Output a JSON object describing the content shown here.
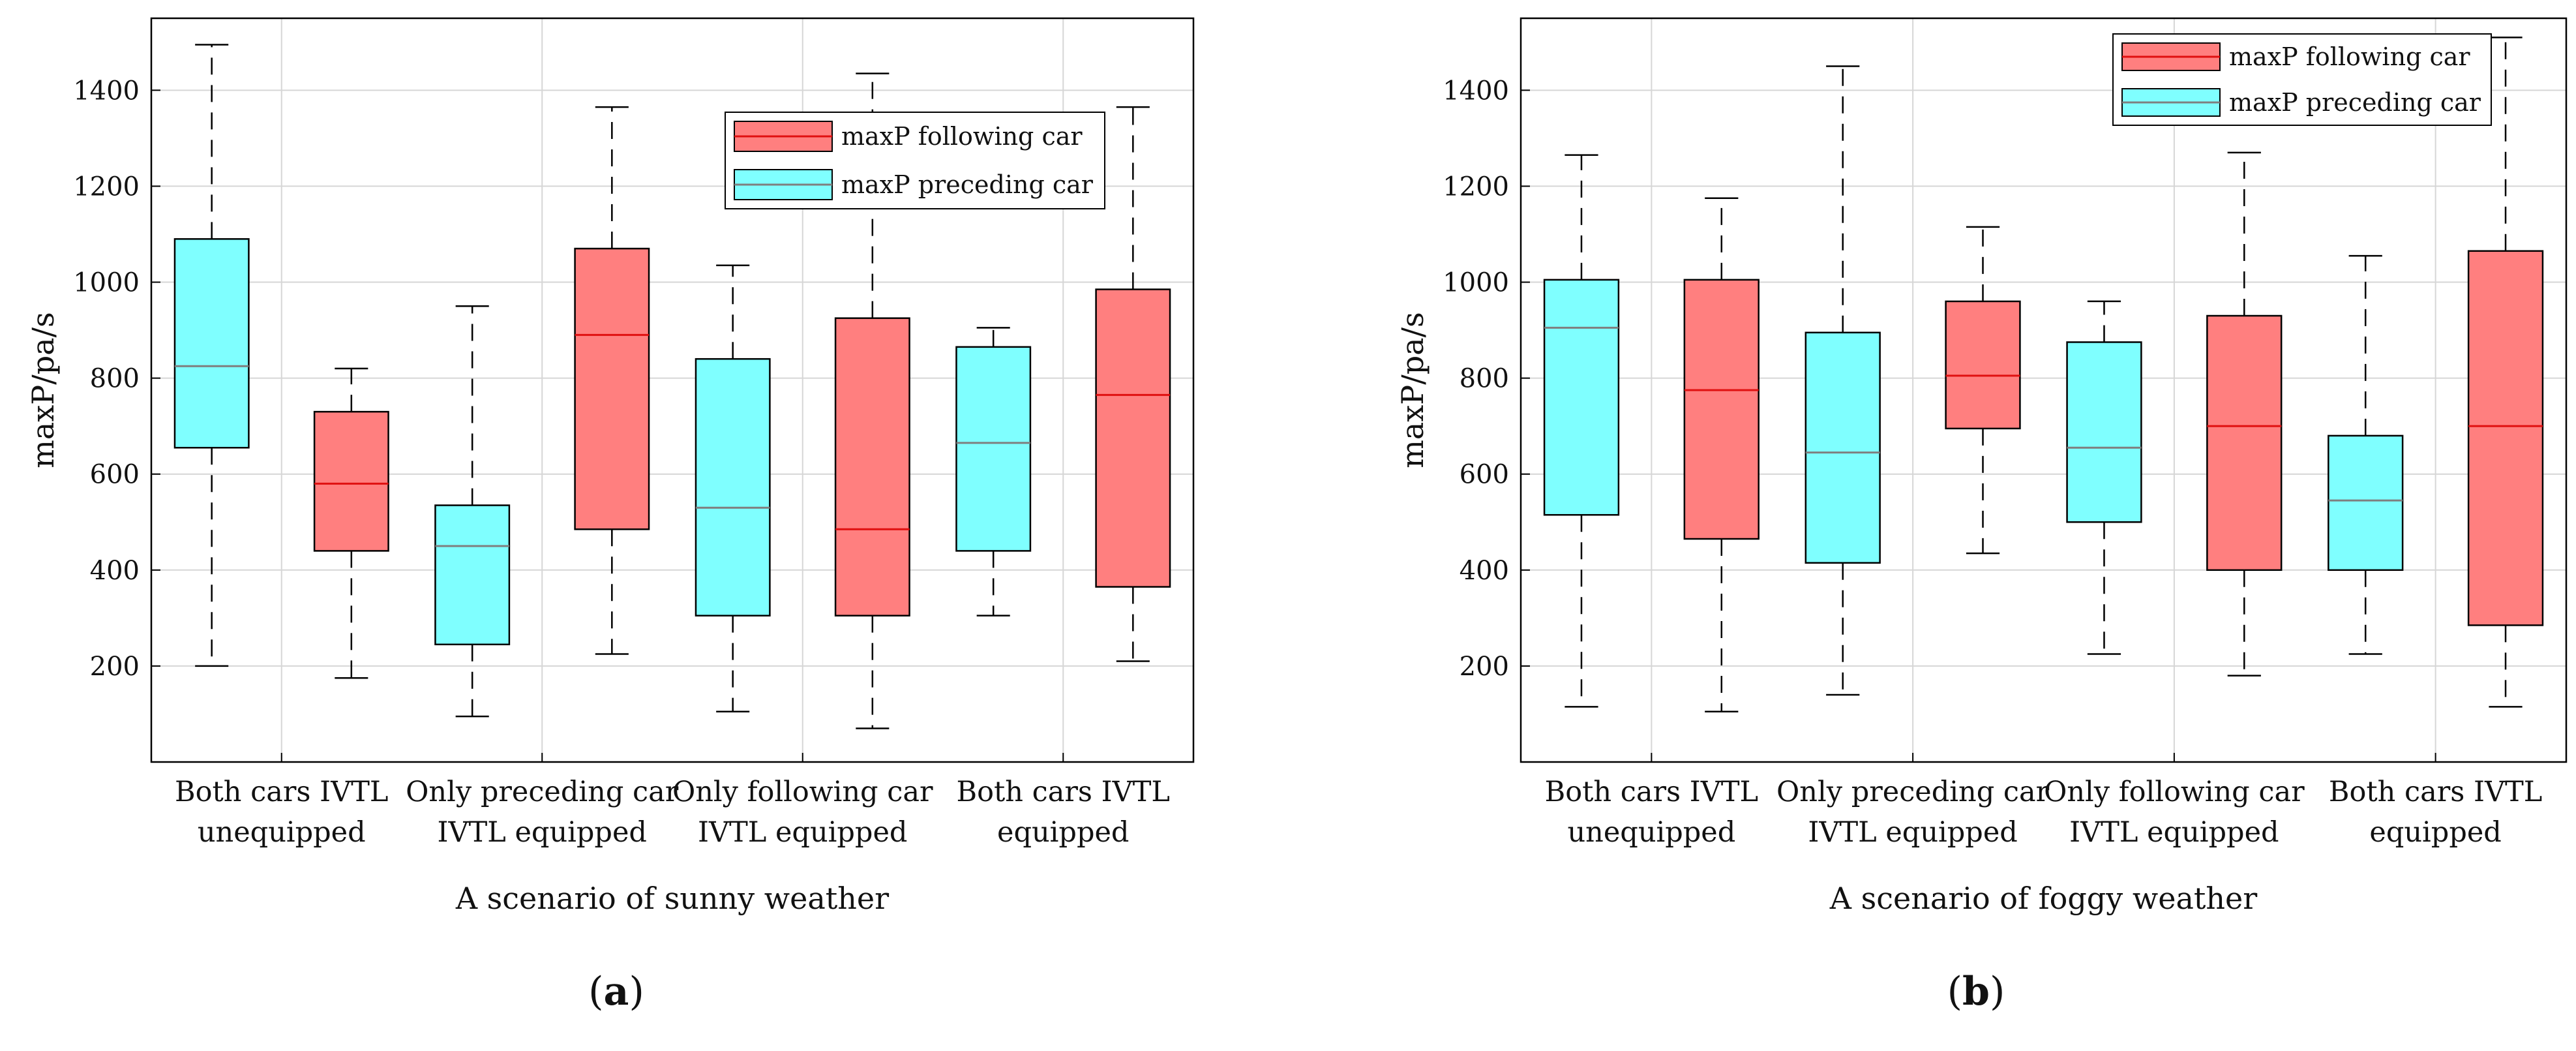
{
  "colors": {
    "following": "#ff7f7f",
    "preceding": "#7fffff",
    "following_median": "#e01010",
    "preceding_median": "#7f7f7f",
    "grid": "#d6d6d6"
  },
  "chart_data": [
    {
      "type": "box",
      "xlabel": "A scenario of sunny weather",
      "ylabel": "maxP/pa/s",
      "panel_prefix": "(",
      "panel_letter": "a",
      "panel_suffix": ")",
      "ylim": [
        0,
        1550
      ],
      "yticks": [
        200,
        400,
        600,
        800,
        1000,
        1200,
        1400
      ],
      "grid": true,
      "legend_position": "top-right",
      "categories": [
        [
          "Both cars IVTL",
          "unequipped"
        ],
        [
          "Only preceding car",
          "IVTL equipped"
        ],
        [
          "Only following car",
          "IVTL equipped"
        ],
        [
          "Both cars IVTL",
          "equipped"
        ]
      ],
      "series": [
        {
          "name": "maxP following car",
          "boxes": [
            {
              "whisker_low": 175,
              "q1": 440,
              "median": 580,
              "q3": 730,
              "whisker_high": 820
            },
            {
              "whisker_low": 225,
              "q1": 485,
              "median": 890,
              "q3": 1070,
              "whisker_high": 1365
            },
            {
              "whisker_low": 70,
              "q1": 305,
              "median": 485,
              "q3": 925,
              "whisker_high": 1435
            },
            {
              "whisker_low": 210,
              "q1": 365,
              "median": 765,
              "q3": 985,
              "whisker_high": 1365
            }
          ]
        },
        {
          "name": "maxP preceding car",
          "boxes": [
            {
              "whisker_low": 200,
              "q1": 655,
              "median": 825,
              "q3": 1090,
              "whisker_high": 1495
            },
            {
              "whisker_low": 95,
              "q1": 245,
              "median": 450,
              "q3": 535,
              "whisker_high": 950
            },
            {
              "whisker_low": 105,
              "q1": 305,
              "median": 530,
              "q3": 840,
              "whisker_high": 1035
            },
            {
              "whisker_low": 305,
              "q1": 440,
              "median": 665,
              "q3": 865,
              "whisker_high": 905
            }
          ]
        }
      ]
    },
    {
      "type": "box",
      "xlabel": "A scenario of foggy weather",
      "ylabel": "maxP/pa/s",
      "panel_prefix": "(",
      "panel_letter": "b",
      "panel_suffix": ")",
      "ylim": [
        0,
        1550
      ],
      "yticks": [
        200,
        400,
        600,
        800,
        1000,
        1200,
        1400
      ],
      "grid": true,
      "legend_position": "top-right",
      "categories": [
        [
          "Both cars IVTL",
          "unequipped"
        ],
        [
          "Only preceding car",
          "IVTL equipped"
        ],
        [
          "Only following car",
          "IVTL equipped"
        ],
        [
          "Both cars IVTL",
          "equipped"
        ]
      ],
      "series": [
        {
          "name": "maxP following car",
          "boxes": [
            {
              "whisker_low": 105,
              "q1": 465,
              "median": 775,
              "q3": 1005,
              "whisker_high": 1175
            },
            {
              "whisker_low": 435,
              "q1": 695,
              "median": 805,
              "q3": 960,
              "whisker_high": 1115
            },
            {
              "whisker_low": 180,
              "q1": 400,
              "median": 700,
              "q3": 930,
              "whisker_high": 1270
            },
            {
              "whisker_low": 115,
              "q1": 285,
              "median": 700,
              "q3": 1065,
              "whisker_high": 1510
            }
          ]
        },
        {
          "name": "maxP preceding car",
          "boxes": [
            {
              "whisker_low": 115,
              "q1": 515,
              "median": 905,
              "q3": 1005,
              "whisker_high": 1265
            },
            {
              "whisker_low": 140,
              "q1": 415,
              "median": 645,
              "q3": 895,
              "whisker_high": 1450
            },
            {
              "whisker_low": 225,
              "q1": 500,
              "median": 655,
              "q3": 875,
              "whisker_high": 960
            },
            {
              "whisker_low": 225,
              "q1": 400,
              "median": 545,
              "q3": 680,
              "whisker_high": 1055
            }
          ]
        }
      ]
    }
  ]
}
